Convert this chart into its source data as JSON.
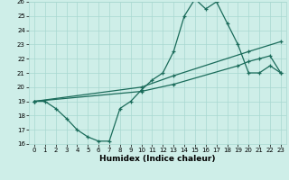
{
  "xlabel": "Humidex (Indice chaleur)",
  "xlim": [
    -0.5,
    23.5
  ],
  "ylim": [
    16,
    26
  ],
  "xticks": [
    0,
    1,
    2,
    3,
    4,
    5,
    6,
    7,
    8,
    9,
    10,
    11,
    12,
    13,
    14,
    15,
    16,
    17,
    18,
    19,
    20,
    21,
    22,
    23
  ],
  "yticks": [
    16,
    17,
    18,
    19,
    20,
    21,
    22,
    23,
    24,
    25,
    26
  ],
  "background_color": "#ceeee8",
  "line_color": "#1a6b5a",
  "line1_x": [
    0,
    1,
    2,
    3,
    4,
    5,
    6,
    7,
    8,
    9,
    10,
    11,
    12,
    13,
    14,
    15,
    16,
    17,
    18,
    19,
    20,
    21,
    22,
    23
  ],
  "line1_y": [
    19,
    19,
    18.5,
    17.8,
    17,
    16.5,
    16.2,
    16.2,
    18.5,
    19,
    19.8,
    20.5,
    21,
    22.5,
    25,
    26.2,
    25.5,
    26,
    24.5,
    23,
    21,
    21,
    21.5,
    21
  ],
  "line2_x": [
    0,
    10,
    13,
    20,
    23
  ],
  "line2_y": [
    19,
    20,
    20.8,
    22.5,
    23.2
  ],
  "line3_x": [
    0,
    10,
    13,
    19,
    20,
    21,
    22,
    23
  ],
  "line3_y": [
    19,
    19.7,
    20.2,
    21.5,
    21.8,
    22.0,
    22.2,
    21.0
  ],
  "grid_color": "#a8d8d0",
  "tick_fontsize": 5.0,
  "xlabel_fontsize": 6.5
}
